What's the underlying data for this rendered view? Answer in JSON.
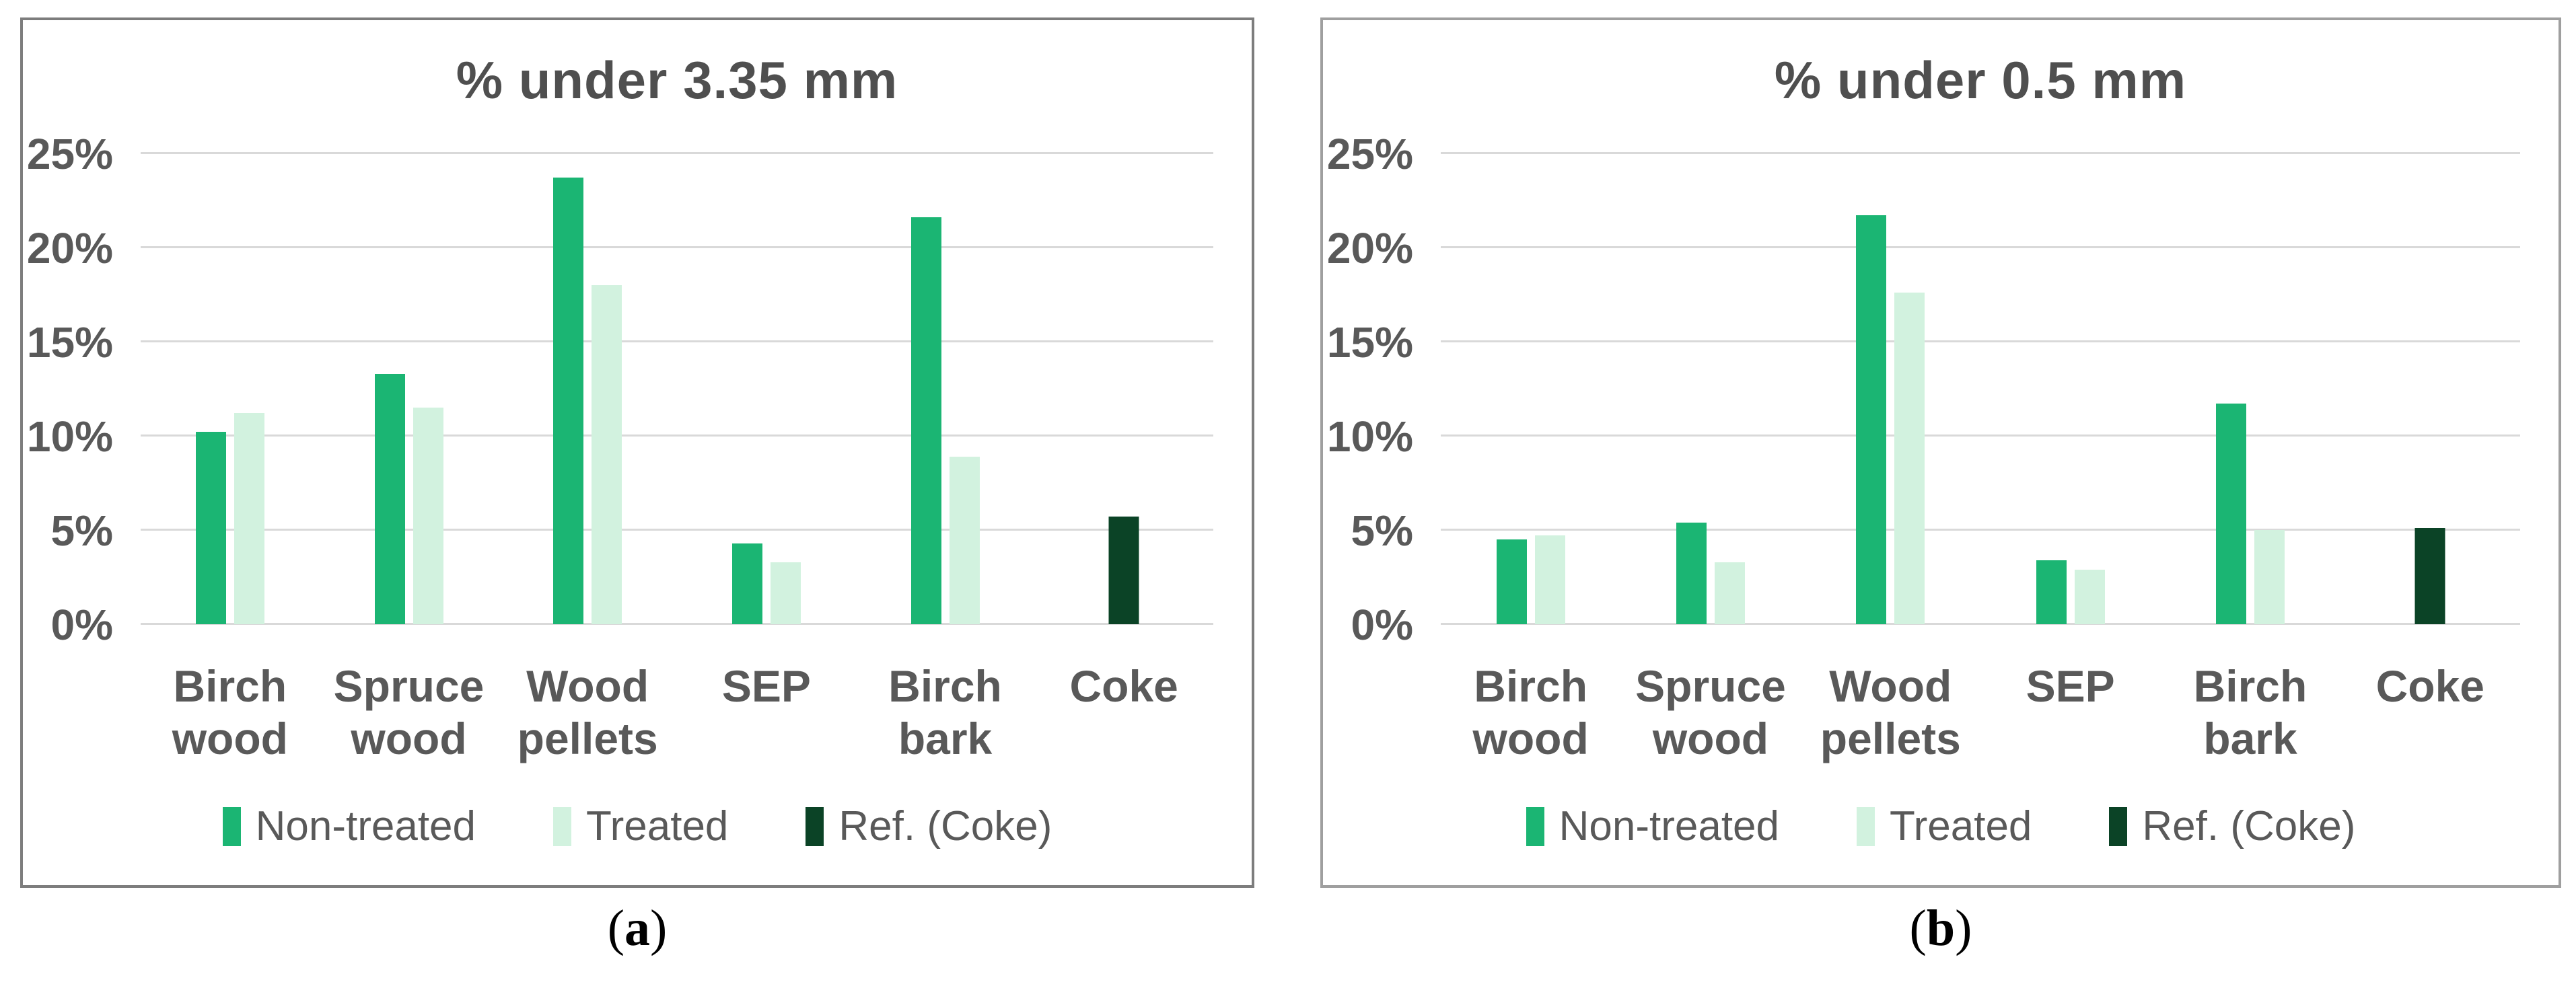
{
  "captions": [
    {
      "open": "(",
      "letter": "a",
      "close": ")"
    },
    {
      "open": "(",
      "letter": "b",
      "close": ")"
    }
  ],
  "chart_data": [
    {
      "type": "bar",
      "title": "% under 3.35 mm",
      "categories": [
        "Birch wood",
        "Spruce wood",
        "Wood pellets",
        "SEP",
        "Birch bark",
        "Coke"
      ],
      "series": [
        {
          "name": "Non-treated",
          "color": "#1bb573",
          "values": [
            10.2,
            13.3,
            23.7,
            4.3,
            21.6,
            null
          ]
        },
        {
          "name": "Treated",
          "color": "#d2f2df",
          "values": [
            11.2,
            11.5,
            18.0,
            3.3,
            8.9,
            null
          ]
        },
        {
          "name": "Ref. (Coke)",
          "color": "#0b4326",
          "values": [
            null,
            null,
            null,
            null,
            null,
            5.7
          ]
        }
      ],
      "ytick_labels": [
        "0%",
        "5%",
        "10%",
        "15%",
        "20%",
        "25%"
      ],
      "ylim": [
        0,
        26.4
      ],
      "ytick_step": 5,
      "grid": true,
      "legend_position": "bottom"
    },
    {
      "type": "bar",
      "title": "% under 0.5 mm",
      "categories": [
        "Birch wood",
        "Spruce wood",
        "Wood pellets",
        "SEP",
        "Birch bark",
        "Coke"
      ],
      "series": [
        {
          "name": "Non-treated",
          "color": "#1bb573",
          "values": [
            4.5,
            5.4,
            21.7,
            3.4,
            11.7,
            null
          ]
        },
        {
          "name": "Treated",
          "color": "#d2f2df",
          "values": [
            4.7,
            3.3,
            17.6,
            2.9,
            5.0,
            null
          ]
        },
        {
          "name": "Ref. (Coke)",
          "color": "#0b4326",
          "values": [
            null,
            null,
            null,
            null,
            null,
            5.1
          ]
        }
      ],
      "ytick_labels": [
        "0%",
        "5%",
        "10%",
        "15%",
        "20%",
        "25%"
      ],
      "ylim": [
        0,
        26.4
      ],
      "ytick_step": 5,
      "grid": true,
      "legend_position": "bottom"
    }
  ],
  "colors": {
    "non_treated": "#1bb573",
    "treated": "#d2f2df",
    "reference": "#0b4326",
    "gridline": "#d9d9d9",
    "text": "#595959"
  }
}
